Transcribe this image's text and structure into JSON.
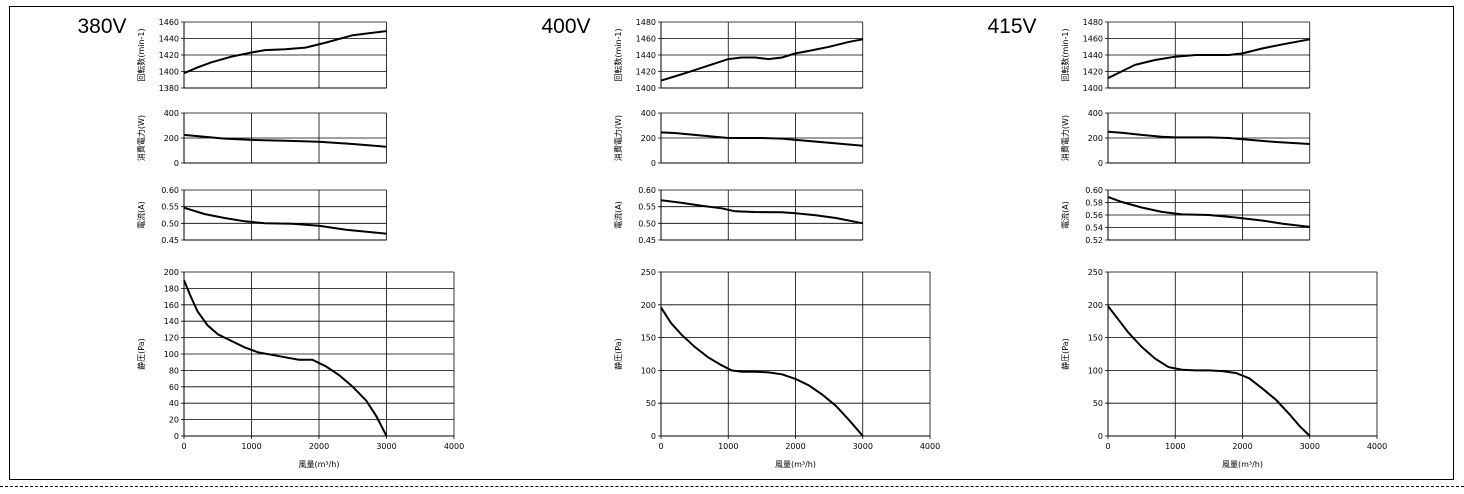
{
  "chart_data": [
    {
      "voltage": "380V",
      "type": "line",
      "xlabel": "風量(m³/h)",
      "xlim": [
        0,
        4000
      ],
      "xticks": [
        "0",
        "1000",
        "2000",
        "3000",
        "4000"
      ],
      "panels": [
        {
          "ylabel": "回転数(min-1)",
          "ylim": [
            1380,
            1460
          ],
          "yticks": [
            "1380",
            "1400",
            "1420",
            "1440",
            "1460"
          ],
          "x": [
            0,
            200,
            400,
            700,
            1000,
            1200,
            1500,
            1800,
            2100,
            2500,
            3000
          ],
          "y": [
            1398,
            1405,
            1411,
            1418,
            1423,
            1426,
            1427,
            1429,
            1435,
            1444,
            1449
          ]
        },
        {
          "ylabel": "消費電力(W)",
          "ylim": [
            0,
            400
          ],
          "yticks": [
            "0",
            "200",
            "400"
          ],
          "x": [
            0,
            200,
            600,
            1000,
            1500,
            2000,
            2500,
            3000
          ],
          "y": [
            225,
            215,
            195,
            185,
            178,
            170,
            152,
            130
          ]
        },
        {
          "ylabel": "電流(A)",
          "ylim": [
            0.45,
            0.6
          ],
          "yticks": [
            "0.45",
            "0.50",
            "0.55",
            "0.60"
          ],
          "x": [
            0,
            300,
            600,
            900,
            1200,
            1600,
            2000,
            2400,
            3000
          ],
          "y": [
            0.547,
            0.528,
            0.516,
            0.506,
            0.5,
            0.499,
            0.493,
            0.481,
            0.469
          ]
        },
        {
          "ylabel": "静圧(Pa)",
          "ylim": [
            0,
            200
          ],
          "yticks": [
            "0",
            "20",
            "40",
            "60",
            "80",
            "100",
            "120",
            "140",
            "160",
            "180",
            "200"
          ],
          "x": [
            0,
            100,
            200,
            350,
            500,
            700,
            900,
            1100,
            1300,
            1500,
            1700,
            1900,
            2100,
            2300,
            2500,
            2700,
            2850,
            3000
          ],
          "y": [
            190,
            170,
            152,
            135,
            124,
            116,
            108,
            102,
            99,
            96,
            93,
            93,
            85,
            74,
            60,
            43,
            24,
            0
          ]
        }
      ]
    },
    {
      "voltage": "400V",
      "type": "line",
      "xlabel": "風量(m³/h)",
      "xlim": [
        0,
        4000
      ],
      "xticks": [
        "0",
        "1000",
        "2000",
        "3000",
        "4000"
      ],
      "panels": [
        {
          "ylabel": "回転数(min-1)",
          "ylim": [
            1400,
            1480
          ],
          "yticks": [
            "1400",
            "1420",
            "1440",
            "1460",
            "1480"
          ],
          "x": [
            0,
            200,
            400,
            700,
            1000,
            1200,
            1400,
            1600,
            1800,
            2000,
            2200,
            2500,
            2800,
            3000
          ],
          "y": [
            1409,
            1414,
            1419,
            1427,
            1435,
            1437,
            1437,
            1435,
            1437,
            1442,
            1445,
            1450,
            1456,
            1459
          ]
        },
        {
          "ylabel": "消費電力(W)",
          "ylim": [
            0,
            400
          ],
          "yticks": [
            "0",
            "200",
            "400"
          ],
          "x": [
            0,
            200,
            500,
            800,
            1000,
            1500,
            1800,
            2000,
            2500,
            3000
          ],
          "y": [
            245,
            240,
            225,
            210,
            200,
            200,
            195,
            185,
            162,
            138
          ]
        },
        {
          "ylabel": "電流(A)",
          "ylim": [
            0.45,
            0.6
          ],
          "yticks": [
            "0.45",
            "0.50",
            "0.55",
            "0.60"
          ],
          "x": [
            0,
            300,
            600,
            900,
            1100,
            1400,
            1800,
            2000,
            2300,
            2600,
            3000
          ],
          "y": [
            0.569,
            0.562,
            0.553,
            0.545,
            0.536,
            0.534,
            0.533,
            0.53,
            0.524,
            0.516,
            0.5
          ]
        },
        {
          "ylabel": "静圧(Pa)",
          "ylim": [
            0,
            250
          ],
          "yticks": [
            "0",
            "50",
            "100",
            "150",
            "200",
            "250"
          ],
          "x": [
            0,
            150,
            300,
            500,
            700,
            900,
            1050,
            1200,
            1400,
            1600,
            1800,
            2000,
            2200,
            2400,
            2600,
            2800,
            3000
          ],
          "y": [
            196,
            172,
            155,
            136,
            120,
            108,
            100,
            98,
            98,
            97,
            94,
            87,
            77,
            63,
            46,
            24,
            0
          ]
        }
      ]
    },
    {
      "voltage": "415V",
      "type": "line",
      "xlabel": "風量(m³/h)",
      "xlim": [
        0,
        4000
      ],
      "xticks": [
        "0",
        "1000",
        "2000",
        "3000",
        "4000"
      ],
      "panels": [
        {
          "ylabel": "回転数(min-1)",
          "ylim": [
            1400,
            1480
          ],
          "yticks": [
            "1400",
            "1420",
            "1440",
            "1460",
            "1480"
          ],
          "x": [
            0,
            200,
            400,
            700,
            1000,
            1300,
            1600,
            1800,
            2000,
            2300,
            2600,
            3000
          ],
          "y": [
            1412,
            1420,
            1428,
            1434,
            1438,
            1440,
            1440,
            1440,
            1442,
            1448,
            1453,
            1459
          ]
        },
        {
          "ylabel": "消費電力(W)",
          "ylim": [
            0,
            400
          ],
          "yticks": [
            "0",
            "200",
            "400"
          ],
          "x": [
            0,
            200,
            500,
            800,
            1000,
            1500,
            1800,
            2000,
            2500,
            3000
          ],
          "y": [
            250,
            242,
            225,
            210,
            205,
            205,
            200,
            190,
            168,
            152
          ]
        },
        {
          "ylabel": "電流(A)",
          "ylim": [
            0.52,
            0.6
          ],
          "yticks": [
            "0.52",
            "0.54",
            "0.56",
            "0.58",
            "0.60"
          ],
          "x": [
            0,
            200,
            500,
            800,
            1100,
            1500,
            1900,
            2300,
            2600,
            3000
          ],
          "y": [
            0.589,
            0.581,
            0.572,
            0.565,
            0.561,
            0.56,
            0.556,
            0.551,
            0.546,
            0.541
          ]
        },
        {
          "ylabel": "静圧(Pa)",
          "ylim": [
            0,
            250
          ],
          "yticks": [
            "0",
            "50",
            "100",
            "150",
            "200",
            "250"
          ],
          "x": [
            0,
            150,
            300,
            500,
            700,
            900,
            1100,
            1300,
            1500,
            1700,
            1900,
            2100,
            2300,
            2500,
            2700,
            2850,
            3000
          ],
          "y": [
            198,
            178,
            158,
            136,
            118,
            105,
            101,
            100,
            100,
            99,
            96,
            88,
            72,
            55,
            33,
            15,
            0
          ]
        }
      ]
    }
  ]
}
